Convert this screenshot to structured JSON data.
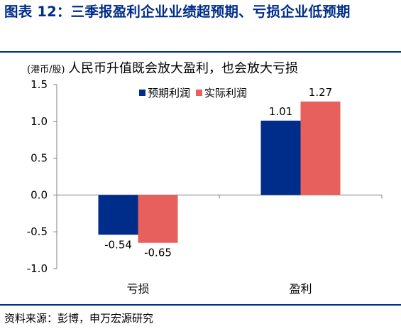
{
  "figure_title": "图表 12：三季报盈利企业业绩超预期、亏损企业低预期",
  "source": "资料来源：彭博，申万宏源研究",
  "colors": {
    "title": "#002D8A",
    "rule": "#002D8A",
    "series_expected": "#002D8A",
    "series_actual": "#E8605E",
    "axis": "#808080"
  },
  "chart_data": {
    "type": "bar",
    "title": "人民币升值既会放大盈利，也会放大亏损",
    "unit_label": "(港币/股)",
    "categories": [
      "亏损",
      "盈利"
    ],
    "series": [
      {
        "name": "预期利润",
        "values": [
          -0.54,
          1.01
        ]
      },
      {
        "name": "实际利润",
        "values": [
          -0.65,
          1.27
        ]
      }
    ],
    "data_labels": [
      [
        "-0.54",
        "1.01"
      ],
      [
        "-0.65",
        "1.27"
      ]
    ],
    "ylim": [
      -1.0,
      1.5
    ],
    "yticks": [
      -1.0,
      -0.5,
      0.0,
      0.5,
      1.0,
      1.5
    ],
    "ytick_labels": [
      "-1.0",
      "-0.5",
      "0.0",
      "0.5",
      "1.0",
      "1.5"
    ],
    "grid": false,
    "legend_position": "top-center"
  }
}
